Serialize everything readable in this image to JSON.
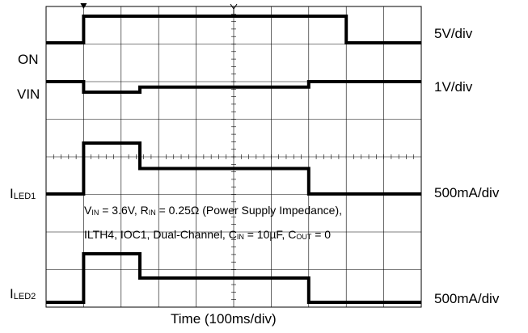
{
  "chart_data": {
    "type": "line",
    "xlabel": "Time (100ms/div)",
    "x_unit": "ms",
    "x_divisions": 10,
    "x_range": [
      0,
      1000
    ],
    "channels": [
      {
        "name": "ON",
        "label": "ON",
        "scale": "5V/div",
        "points": [
          [
            0,
            0
          ],
          [
            100,
            0
          ],
          [
            100,
            5
          ],
          [
            800,
            5
          ],
          [
            800,
            0
          ],
          [
            1000,
            0
          ]
        ]
      },
      {
        "name": "VIN",
        "label": "VIN",
        "scale": "1V/div",
        "points": [
          [
            0,
            3.6
          ],
          [
            100,
            3.6
          ],
          [
            100,
            3.18
          ],
          [
            250,
            3.18
          ],
          [
            250,
            3.38
          ],
          [
            700,
            3.38
          ],
          [
            700,
            3.6
          ],
          [
            1000,
            3.6
          ]
        ]
      },
      {
        "name": "ILED1",
        "label_main": "I",
        "label_sub": "LED1",
        "scale": "500mA/div",
        "points": [
          [
            0,
            0
          ],
          [
            100,
            0
          ],
          [
            100,
            1200
          ],
          [
            250,
            1200
          ],
          [
            250,
            600
          ],
          [
            700,
            600
          ],
          [
            700,
            0
          ],
          [
            1000,
            0
          ]
        ]
      },
      {
        "name": "ILED2",
        "label_main": "I",
        "label_sub": "LED2",
        "scale": "500mA/div",
        "points": [
          [
            0,
            0
          ],
          [
            100,
            0
          ],
          [
            100,
            1200
          ],
          [
            250,
            1200
          ],
          [
            250,
            600
          ],
          [
            700,
            600
          ],
          [
            700,
            0
          ],
          [
            1000,
            0
          ]
        ]
      }
    ],
    "annotation_line1": {
      "v": "V",
      "v_sub": "IN",
      "v_rest": " = 3.6V, R",
      "r_sub": "IN",
      "rest": " = 0.25Ω (Power Supply Impedance),"
    },
    "annotation_line2": {
      "a": "ILTH4, IOC1, Dual-Channel, C",
      "c_sub": "IN",
      "b": " = 10µF, C",
      "cout_sub": "OUT",
      "c": " = 0"
    }
  }
}
